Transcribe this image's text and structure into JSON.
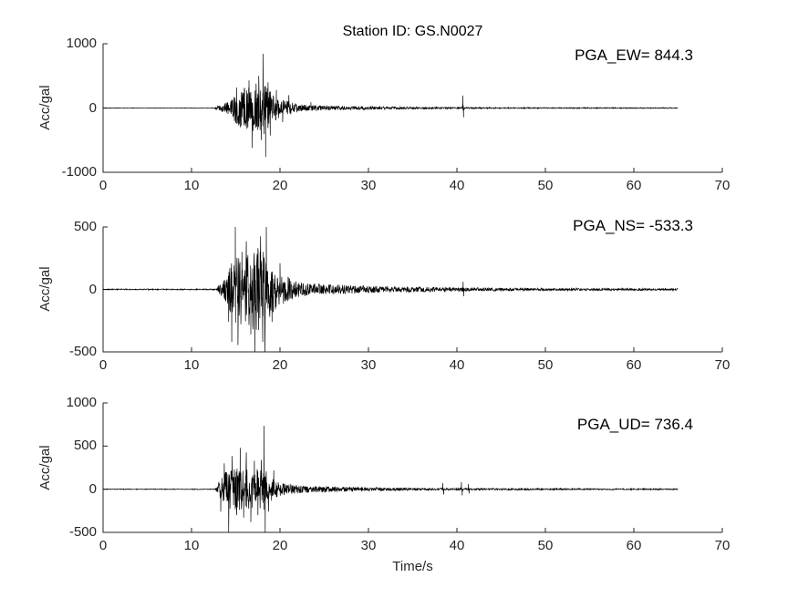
{
  "figure": {
    "title": "Station ID: GS.N0027",
    "xlabel": "Time/s",
    "background": "#ffffff",
    "trace_color": "#000000",
    "axis_color": "#262626"
  },
  "chart_data": [
    {
      "type": "line",
      "component": "EW",
      "annotation": "PGA_EW= 844.3",
      "pga_gal": 844.3,
      "peak_time_s": 18.1,
      "ylabel": "Acc/gal",
      "ylim": [
        -1000,
        1000
      ],
      "yticks": [
        -1000,
        0,
        1000
      ],
      "xlim": [
        0,
        70
      ],
      "xticks": [
        0,
        10,
        20,
        30,
        40,
        50,
        60,
        70
      ],
      "signal_onset_s": 12.7,
      "trace_end_s": 65,
      "aftershock_time_s": 40.7,
      "envelope_t_amp": [
        [
          0,
          4
        ],
        [
          12.6,
          4
        ],
        [
          12.9,
          35
        ],
        [
          13.6,
          60
        ],
        [
          14.4,
          120
        ],
        [
          15.0,
          260
        ],
        [
          15.7,
          300
        ],
        [
          16.4,
          340
        ],
        [
          17.0,
          380
        ],
        [
          17.6,
          360
        ],
        [
          18.2,
          420
        ],
        [
          18.7,
          320
        ],
        [
          19.4,
          200
        ],
        [
          20.4,
          130
        ],
        [
          21.3,
          95
        ],
        [
          22.5,
          55
        ],
        [
          24,
          40
        ],
        [
          26,
          34
        ],
        [
          28,
          30
        ],
        [
          31,
          24
        ],
        [
          34,
          18
        ],
        [
          37,
          14
        ],
        [
          40,
          12
        ],
        [
          43,
          10
        ],
        [
          47,
          9
        ],
        [
          52,
          8
        ],
        [
          58,
          8
        ],
        [
          65,
          7
        ]
      ],
      "spikes_t_gal": [
        [
          15.1,
          320
        ],
        [
          15.5,
          -300
        ],
        [
          16.0,
          300
        ],
        [
          16.5,
          430
        ],
        [
          16.85,
          -620
        ],
        [
          17.3,
          380
        ],
        [
          17.6,
          500
        ],
        [
          17.9,
          -500
        ],
        [
          18.1,
          844.3
        ],
        [
          18.38,
          -758
        ],
        [
          18.65,
          400
        ],
        [
          18.9,
          -430
        ],
        [
          19.6,
          280
        ],
        [
          20.3,
          -220
        ],
        [
          21.0,
          200
        ],
        [
          23.5,
          90
        ],
        [
          40.68,
          195
        ],
        [
          40.75,
          -145
        ]
      ]
    },
    {
      "type": "line",
      "component": "NS",
      "annotation": "PGA_NS= -533.3",
      "pga_gal": -533.3,
      "peak_time_s": 17.15,
      "ylabel": "Acc/gal",
      "ylim": [
        -500,
        500
      ],
      "yticks": [
        -500,
        0,
        500
      ],
      "xlim": [
        0,
        70
      ],
      "xticks": [
        0,
        10,
        20,
        30,
        40,
        50,
        60,
        70
      ],
      "signal_onset_s": 12.8,
      "trace_end_s": 65,
      "aftershock_time_s": 40.7,
      "envelope_t_amp": [
        [
          0,
          4
        ],
        [
          12.8,
          4
        ],
        [
          13.1,
          40
        ],
        [
          13.8,
          90
        ],
        [
          14.6,
          240
        ],
        [
          15.2,
          300
        ],
        [
          16.0,
          260
        ],
        [
          16.8,
          320
        ],
        [
          17.6,
          330
        ],
        [
          18.3,
          310
        ],
        [
          19.0,
          200
        ],
        [
          19.8,
          140
        ],
        [
          20.8,
          100
        ],
        [
          22,
          65
        ],
        [
          23.5,
          50
        ],
        [
          25,
          42
        ],
        [
          27,
          35
        ],
        [
          29,
          30
        ],
        [
          32,
          26
        ],
        [
          35,
          22
        ],
        [
          38,
          18
        ],
        [
          41,
          15
        ],
        [
          45,
          12
        ],
        [
          50,
          10
        ],
        [
          56,
          9
        ],
        [
          65,
          8
        ]
      ],
      "spikes_t_gal": [
        [
          14.2,
          -260
        ],
        [
          14.55,
          -420
        ],
        [
          14.95,
          500
        ],
        [
          15.25,
          -445
        ],
        [
          15.7,
          300
        ],
        [
          16.2,
          385
        ],
        [
          16.7,
          -360
        ],
        [
          17.15,
          -533.3
        ],
        [
          17.5,
          330
        ],
        [
          17.8,
          425
        ],
        [
          18.05,
          -420
        ],
        [
          18.3,
          -533
        ],
        [
          18.45,
          505
        ],
        [
          19.1,
          -260
        ],
        [
          20.0,
          210
        ],
        [
          40.7,
          62
        ],
        [
          40.78,
          -55
        ]
      ]
    },
    {
      "type": "line",
      "component": "UD",
      "annotation": "PGA_UD= 736.4",
      "pga_gal": 736.4,
      "peak_time_s": 18.2,
      "ylabel": "Acc/gal",
      "ylim": [
        -500,
        1000
      ],
      "yticks": [
        -500,
        0,
        500,
        1000
      ],
      "xlim": [
        0,
        70
      ],
      "xticks": [
        0,
        10,
        20,
        30,
        40,
        50,
        60,
        70
      ],
      "signal_onset_s": 12.7,
      "trace_end_s": 65,
      "aftershock_time_s": 40.5,
      "envelope_t_amp": [
        [
          0,
          4
        ],
        [
          12.7,
          4
        ],
        [
          13.0,
          70
        ],
        [
          13.4,
          150
        ],
        [
          14.0,
          220
        ],
        [
          14.8,
          240
        ],
        [
          15.6,
          260
        ],
        [
          16.4,
          230
        ],
        [
          17.2,
          240
        ],
        [
          18.0,
          260
        ],
        [
          18.6,
          200
        ],
        [
          19.2,
          120
        ],
        [
          19.9,
          80
        ],
        [
          20.8,
          60
        ],
        [
          22,
          48
        ],
        [
          23.5,
          40
        ],
        [
          25,
          34
        ],
        [
          27,
          28
        ],
        [
          29,
          24
        ],
        [
          31,
          20
        ],
        [
          33,
          17
        ],
        [
          35,
          15
        ],
        [
          37,
          13
        ],
        [
          39,
          12
        ],
        [
          41,
          11
        ],
        [
          44,
          10
        ],
        [
          48,
          9
        ],
        [
          53,
          8
        ],
        [
          58,
          8
        ],
        [
          65,
          7
        ]
      ],
      "spikes_t_gal": [
        [
          13.3,
          -260
        ],
        [
          13.7,
          300
        ],
        [
          14.2,
          -545
        ],
        [
          14.6,
          385
        ],
        [
          15.1,
          -300
        ],
        [
          15.5,
          480
        ],
        [
          15.9,
          -330
        ],
        [
          16.2,
          425
        ],
        [
          16.7,
          -380
        ],
        [
          17.1,
          330
        ],
        [
          17.5,
          -300
        ],
        [
          17.9,
          340
        ],
        [
          18.2,
          736.4
        ],
        [
          18.33,
          -542
        ],
        [
          18.7,
          -260
        ],
        [
          19.3,
          220
        ],
        [
          38.4,
          72
        ],
        [
          38.5,
          -62
        ],
        [
          40.5,
          82
        ],
        [
          40.6,
          -72
        ],
        [
          41.3,
          58
        ],
        [
          41.38,
          -50
        ]
      ]
    }
  ]
}
